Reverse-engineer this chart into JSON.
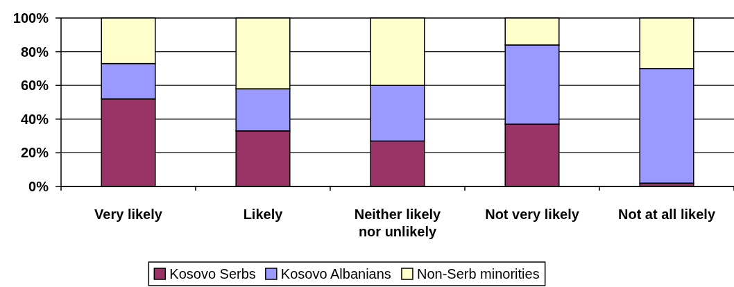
{
  "chart_data": {
    "type": "bar",
    "stacked": true,
    "categories": [
      "Very likely",
      "Likely",
      "Neither likely nor unlikely",
      "Not very likely",
      "Not at all likely"
    ],
    "series": [
      {
        "name": "Kosovo Serbs",
        "color": "#993366",
        "values": [
          52,
          33,
          27,
          37,
          2
        ]
      },
      {
        "name": "Kosovo Albanians",
        "color": "#9999ff",
        "values": [
          21,
          25,
          33,
          47,
          68
        ]
      },
      {
        "name": "Non-Serb minorities",
        "color": "#ffffcc",
        "values": [
          27,
          42,
          40,
          16,
          30
        ]
      }
    ],
    "ylim": [
      0,
      100
    ],
    "yticks": [
      {
        "value": 0,
        "label": "0%"
      },
      {
        "value": 20,
        "label": "20%"
      },
      {
        "value": 40,
        "label": "40%"
      },
      {
        "value": 60,
        "label": "60%"
      },
      {
        "value": 80,
        "label": "80%"
      },
      {
        "value": 100,
        "label": "100%"
      }
    ],
    "grid": "y",
    "legend": "bottom"
  }
}
